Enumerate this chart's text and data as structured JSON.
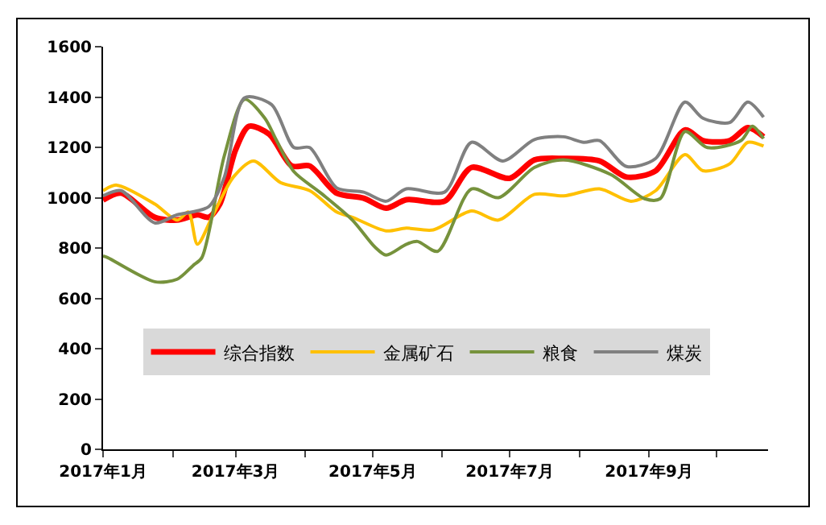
{
  "chart_data": {
    "type": "line",
    "xlim": [
      "2017-01-01",
      "2017-10-24"
    ],
    "xticks": [
      {
        "value": "2017-01-01",
        "label": "2017年1月"
      },
      {
        "value": "2017-02-01",
        "label": null
      },
      {
        "value": "2017-03-01",
        "label": "2017年3月"
      },
      {
        "value": "2017-04-01",
        "label": null
      },
      {
        "value": "2017-05-01",
        "label": "2017年5月"
      },
      {
        "value": "2017-06-01",
        "label": null
      },
      {
        "value": "2017-07-01",
        "label": "2017年7月"
      },
      {
        "value": "2017-08-01",
        "label": null
      },
      {
        "value": "2017-09-01",
        "label": "2017年9月"
      },
      {
        "value": "2017-10-01",
        "label": null
      }
    ],
    "ylim": [
      0,
      1600
    ],
    "yticks": [
      0,
      200,
      400,
      600,
      800,
      1000,
      1200,
      1400,
      1600
    ],
    "grid": false,
    "legend": "bottom left",
    "marker": "none",
    "line_style": "solid",
    "series": [
      {
        "name": "综合指数",
        "color": "#ff0000",
        "x": [
          "2017-01-01",
          "2017-01-09",
          "2017-01-24",
          "2017-02-03",
          "2017-02-12",
          "2017-02-17",
          "2017-02-22",
          "2017-03-01",
          "2017-03-07",
          "2017-03-16",
          "2017-03-26",
          "2017-04-03",
          "2017-04-15",
          "2017-04-27",
          "2017-05-07",
          "2017-05-16",
          "2017-06-02",
          "2017-06-14",
          "2017-07-01",
          "2017-07-12",
          "2017-07-25",
          "2017-08-10",
          "2017-08-22",
          "2017-09-04",
          "2017-09-17",
          "2017-09-25",
          "2017-10-07",
          "2017-10-15",
          "2017-10-22"
        ],
        "values": [
          990,
          1018,
          922,
          911,
          932,
          922,
          975,
          1190,
          1284,
          1252,
          1126,
          1126,
          1018,
          998,
          958,
          992,
          986,
          1120,
          1077,
          1150,
          1156,
          1146,
          1082,
          1107,
          1269,
          1227,
          1227,
          1278,
          1242
        ]
      },
      {
        "name": "金属矿石",
        "color": "#ffc000",
        "x": [
          "2017-01-01",
          "2017-01-07",
          "2017-01-24",
          "2017-02-03",
          "2017-02-08",
          "2017-02-12",
          "2017-02-19",
          "2017-02-28",
          "2017-03-09",
          "2017-03-21",
          "2017-04-03",
          "2017-04-15",
          "2017-04-22",
          "2017-05-07",
          "2017-05-16",
          "2017-05-28",
          "2017-06-14",
          "2017-06-26",
          "2017-07-12",
          "2017-07-25",
          "2017-08-10",
          "2017-08-24",
          "2017-09-04",
          "2017-09-17",
          "2017-09-25",
          "2017-10-07",
          "2017-10-15",
          "2017-10-22"
        ],
        "values": [
          1028,
          1050,
          975,
          911,
          943,
          815,
          932,
          1082,
          1146,
          1060,
          1028,
          943,
          922,
          868,
          879,
          872,
          947,
          911,
          1013,
          1007,
          1035,
          986,
          1028,
          1171,
          1107,
          1135,
          1220,
          1205
        ]
      },
      {
        "name": "粮食",
        "color": "#76923c",
        "x": [
          "2017-01-01",
          "2017-01-03",
          "2017-01-24",
          "2017-02-03",
          "2017-02-10",
          "2017-02-14",
          "2017-02-24",
          "2017-03-05",
          "2017-03-14",
          "2017-03-19",
          "2017-03-27",
          "2017-04-08",
          "2017-04-22",
          "2017-05-02",
          "2017-05-07",
          "2017-05-16",
          "2017-05-21",
          "2017-05-30",
          "2017-06-14",
          "2017-06-26",
          "2017-07-12",
          "2017-07-25",
          "2017-08-15",
          "2017-08-30",
          "2017-09-06",
          "2017-09-17",
          "2017-09-27",
          "2017-10-12",
          "2017-10-17",
          "2017-10-22"
        ],
        "values": [
          768,
          762,
          666,
          676,
          730,
          762,
          1167,
          1391,
          1316,
          1231,
          1103,
          1018,
          911,
          804,
          772,
          815,
          826,
          787,
          1035,
          1000,
          1120,
          1150,
          1092,
          996,
          996,
          1263,
          1199,
          1227,
          1284,
          1235
        ]
      },
      {
        "name": "煤炭",
        "color": "#808080",
        "x": [
          "2017-01-01",
          "2017-01-09",
          "2017-01-24",
          "2017-02-03",
          "2017-02-17",
          "2017-02-24",
          "2017-03-05",
          "2017-03-17",
          "2017-03-27",
          "2017-04-03",
          "2017-04-15",
          "2017-04-27",
          "2017-05-07",
          "2017-05-16",
          "2017-06-02",
          "2017-06-14",
          "2017-06-28",
          "2017-07-12",
          "2017-07-25",
          "2017-08-03",
          "2017-08-10",
          "2017-08-22",
          "2017-09-04",
          "2017-09-17",
          "2017-09-25",
          "2017-10-07",
          "2017-10-15",
          "2017-10-22"
        ],
        "values": [
          1007,
          1028,
          900,
          932,
          964,
          1082,
          1397,
          1370,
          1199,
          1199,
          1039,
          1022,
          986,
          1035,
          1022,
          1220,
          1146,
          1231,
          1242,
          1220,
          1227,
          1124,
          1156,
          1380,
          1316,
          1299,
          1380,
          1320
        ]
      }
    ]
  }
}
